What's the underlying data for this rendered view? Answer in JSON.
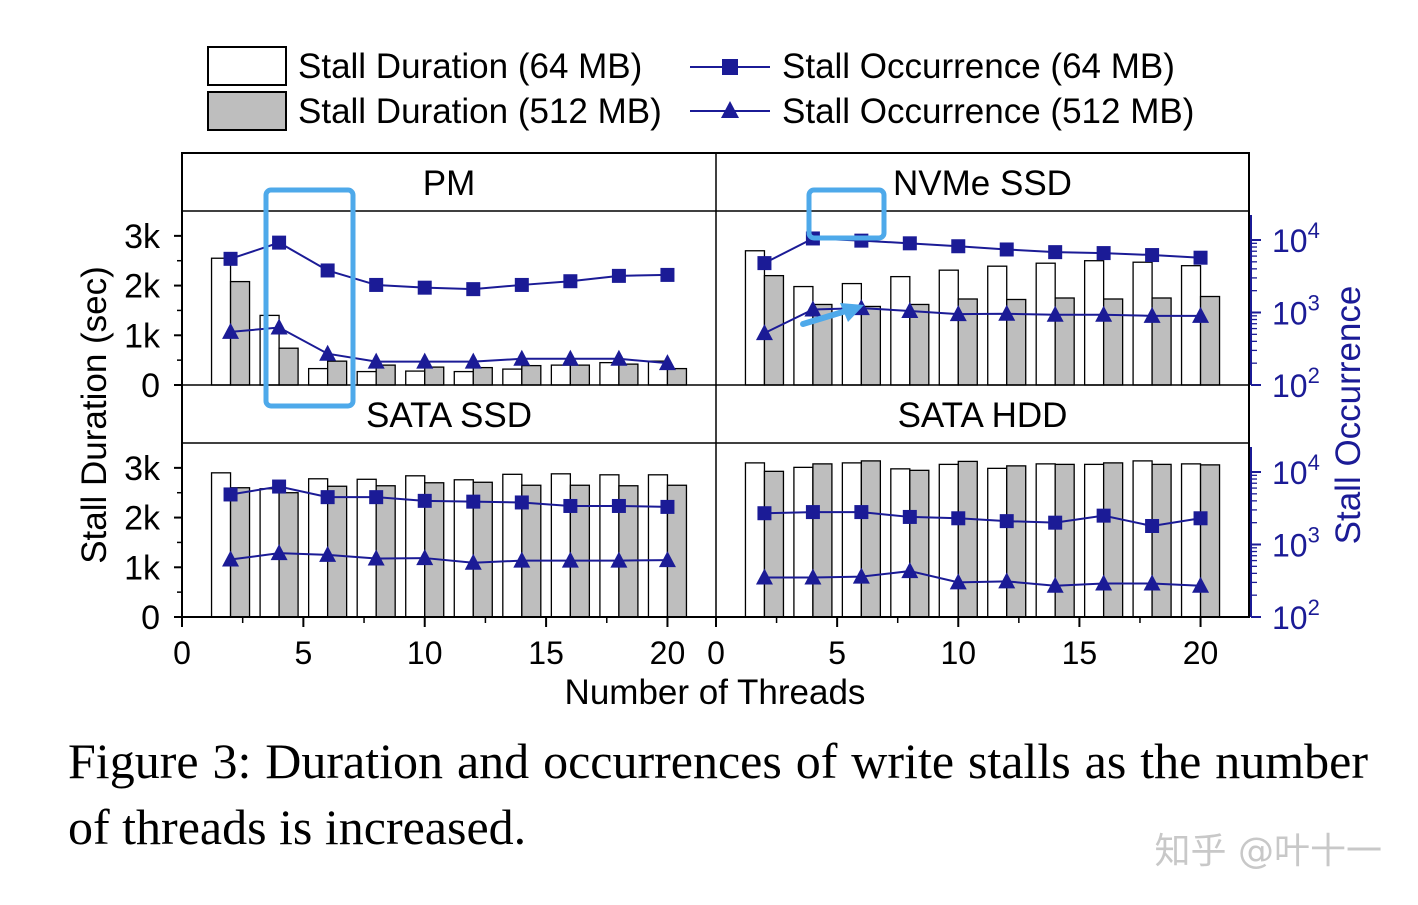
{
  "chart_data": {
    "type": "bar",
    "xlabel": "Number of Threads",
    "ylabel_left": "Stall Duration (sec)",
    "ylabel_right": "Stall Occurrence",
    "y_left_ticks": [
      "0",
      "1k",
      "2k",
      "3k"
    ],
    "y_left_range": [
      0,
      3500
    ],
    "y_right_range_log10": [
      2,
      4.4
    ],
    "x_range": [
      0,
      22
    ],
    "x_ticks": [
      "0",
      "5",
      "10",
      "15",
      "20"
    ],
    "x_tick_values": [
      0,
      5,
      10,
      15,
      20
    ],
    "x": [
      2,
      4,
      6,
      8,
      10,
      12,
      14,
      16,
      18,
      20
    ],
    "legend": {
      "bar64": "Stall Duration (64 MB)",
      "bar512": "Stall Duration (512 MB)",
      "line64": "Stall Occurrence (64 MB)",
      "line512": "Stall Occurrence (512 MB)"
    },
    "colors": {
      "line": "#1b1b96",
      "bar512": "#bebebe",
      "bar64": "#ffffff",
      "highlight": "#4ea9ea"
    },
    "panels": [
      {
        "title": "PM",
        "duration_64": [
          2550,
          1400,
          330,
          270,
          280,
          270,
          320,
          400,
          450,
          480
        ],
        "duration_512": [
          2080,
          740,
          480,
          400,
          360,
          350,
          390,
          400,
          420,
          330
        ],
        "occurrence_64": [
          5500,
          9200,
          3800,
          2400,
          2200,
          2100,
          2400,
          2700,
          3200,
          3300
        ],
        "occurrence_512": [
          540,
          620,
          270,
          210,
          210,
          210,
          230,
          230,
          230,
          200
        ]
      },
      {
        "title": "NVMe SSD",
        "duration_64": [
          2700,
          1980,
          2040,
          2180,
          2310,
          2390,
          2450,
          2500,
          2470,
          2400
        ],
        "duration_512": [
          2200,
          1620,
          1580,
          1620,
          1730,
          1720,
          1750,
          1730,
          1750,
          1780
        ],
        "occurrence_64": [
          4800,
          10500,
          9800,
          9000,
          8200,
          7400,
          6800,
          6600,
          6200,
          5700
        ],
        "occurrence_512": [
          520,
          1100,
          1150,
          1050,
          950,
          960,
          930,
          930,
          900,
          900
        ]
      },
      {
        "title": "SATA SSD",
        "duration_64": [
          2900,
          2580,
          2780,
          2770,
          2840,
          2760,
          2870,
          2880,
          2860,
          2860
        ],
        "duration_512": [
          2600,
          2500,
          2630,
          2640,
          2700,
          2710,
          2650,
          2650,
          2640,
          2650
        ],
        "occurrence_64": [
          4900,
          6300,
          4500,
          4500,
          4000,
          3900,
          3800,
          3400,
          3400,
          3300
        ],
        "occurrence_512": [
          620,
          760,
          720,
          640,
          650,
          560,
          600,
          600,
          600,
          610
        ]
      },
      {
        "title": "SATA HDD",
        "duration_64": [
          3100,
          3010,
          3100,
          2980,
          3070,
          2990,
          3080,
          3070,
          3140,
          3080
        ],
        "duration_512": [
          2930,
          3080,
          3140,
          2950,
          3130,
          3040,
          3070,
          3100,
          3070,
          3060
        ],
        "occurrence_64": [
          2700,
          2800,
          2800,
          2400,
          2300,
          2100,
          2000,
          2500,
          1800,
          2300
        ],
        "occurrence_512": [
          350,
          350,
          360,
          430,
          300,
          310,
          270,
          290,
          290,
          270
        ]
      }
    ]
  },
  "caption": "Figure 3: Duration and occurrences of write stalls as the number of threads is increased.",
  "watermark": "知乎 @叶十一"
}
